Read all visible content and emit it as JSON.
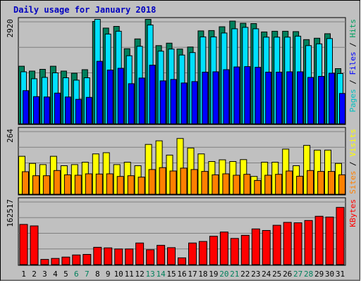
{
  "chart_data": {
    "type": "bar",
    "title": "Daily usage for January 2018",
    "categories": [
      "1",
      "2",
      "3",
      "4",
      "5",
      "6",
      "7",
      "8",
      "9",
      "10",
      "11",
      "12",
      "13",
      "14",
      "15",
      "16",
      "17",
      "18",
      "19",
      "20",
      "21",
      "22",
      "23",
      "24",
      "25",
      "26",
      "27",
      "28",
      "29",
      "30",
      "31"
    ],
    "weekend_days": [
      "6",
      "7",
      "13",
      "14",
      "20",
      "21",
      "27",
      "28"
    ],
    "panels": [
      {
        "id": "hits-files-pages",
        "ymax_label": "2920",
        "ymax": 2920,
        "ylabels": [
          {
            "text": "Pages",
            "color": "#00c0c0"
          },
          {
            "text": "Files",
            "color": "#0000ff"
          },
          {
            "text": "Hits",
            "color": "#00a060"
          }
        ],
        "series": [
          {
            "name": "Hits",
            "color": "#00805c",
            "values": [
              1650,
              1510,
              1560,
              1650,
              1510,
              1450,
              1550,
              2930,
              2740,
              2790,
              2150,
              2430,
              2990,
              2240,
              2310,
              2140,
              2200,
              2660,
              2670,
              2780,
              2940,
              2880,
              2870,
              2630,
              2650,
              2650,
              2640,
              2410,
              2450,
              2580,
              1580
            ]
          },
          {
            "name": "Files",
            "color": "#00e0ff",
            "values": [
              1490,
              1290,
              1330,
              1460,
              1320,
              1250,
              1320,
              2990,
              2570,
              2650,
              1950,
              2220,
              2830,
              2080,
              2140,
              1970,
              2040,
              2490,
              2490,
              2600,
              2720,
              2760,
              2720,
              2480,
              2480,
              2480,
              2510,
              2240,
              2290,
              2440,
              1440
            ]
          },
          {
            "name": "Pages",
            "color": "#0000ff",
            "values": [
              950,
              780,
              770,
              880,
              770,
              700,
              760,
              1790,
              1540,
              1590,
              1150,
              1310,
              1680,
              1230,
              1270,
              1170,
              1210,
              1480,
              1490,
              1550,
              1630,
              1640,
              1620,
              1480,
              1480,
              1490,
              1490,
              1330,
              1360,
              1450,
              870
            ]
          }
        ]
      },
      {
        "id": "visits-sites",
        "ymax_label": "264",
        "ymax": 264,
        "ylabels": [
          {
            "text": "Sites",
            "color": "#ff8000"
          },
          {
            "text": "Visits",
            "color": "#ffff00"
          }
        ],
        "series": [
          {
            "name": "Visits",
            "color": "#ffff00",
            "values": [
              160,
              130,
              125,
              160,
              120,
              125,
              135,
              170,
              175,
              125,
              135,
              120,
              210,
              225,
              165,
              235,
              195,
              170,
              138,
              145,
              138,
              146,
              75,
              135,
              135,
              190,
              120,
              206,
              186,
              186,
              130
            ]
          },
          {
            "name": "Sites",
            "color": "#ff8000",
            "values": [
              95,
              78,
              78,
              100,
              82,
              80,
              86,
              85,
              86,
              75,
              78,
              72,
              104,
              112,
              98,
              110,
              104,
              96,
              82,
              86,
              80,
              84,
              58,
              80,
              84,
              98,
              76,
              100,
              96,
              96,
              82
            ]
          }
        ]
      },
      {
        "id": "kbytes",
        "ymax_label": "162517",
        "ymax": 162517,
        "ylabels": [
          {
            "text": "KBytes",
            "color": "#ff0000"
          }
        ],
        "series": [
          {
            "name": "KBytes",
            "color": "#ff0000",
            "values": [
              104300,
              100500,
              13500,
              16000,
              19500,
              25000,
              26500,
              45000,
              43500,
              40500,
              40500,
              56000,
              38500,
              50000,
              44000,
              17500,
              56000,
              60000,
              73500,
              84500,
              68000,
              76000,
              92500,
              88500,
              102000,
              109500,
              108500,
              114500,
              125500,
              123500,
              148500
            ]
          }
        ]
      }
    ]
  }
}
